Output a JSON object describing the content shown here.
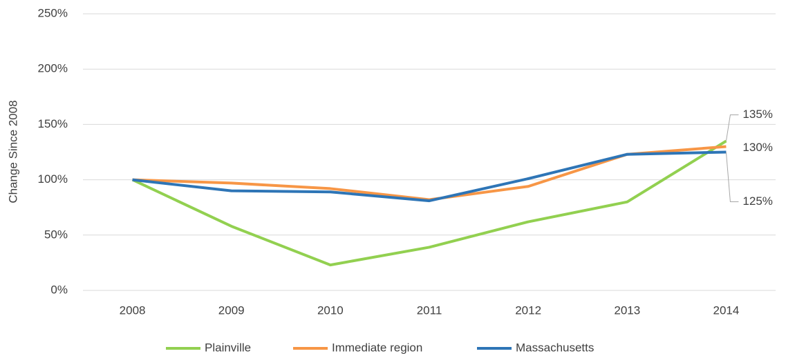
{
  "chart_data": {
    "type": "line",
    "y_label": "Change Since 2008",
    "categories": [
      "2008",
      "2009",
      "2010",
      "2011",
      "2012",
      "2013",
      "2014"
    ],
    "series": [
      {
        "name": "Plainville",
        "color": "#92d050",
        "values": [
          100,
          58,
          23,
          39,
          62,
          80,
          135
        ],
        "value_labels": [
          null,
          null,
          null,
          null,
          null,
          null,
          "135%"
        ]
      },
      {
        "name": "Immediate region",
        "color": "#f79646",
        "values": [
          100,
          97,
          92,
          82,
          94,
          123,
          130
        ],
        "value_labels": [
          null,
          null,
          null,
          null,
          null,
          null,
          "130%"
        ]
      },
      {
        "name": "Massachusetts",
        "color": "#2e75b6",
        "values": [
          100,
          90,
          89,
          81,
          101,
          123,
          125
        ],
        "value_labels": [
          null,
          null,
          null,
          null,
          null,
          null,
          "125%"
        ]
      }
    ],
    "ylim": [
      0,
      250
    ],
    "yticks": [
      {
        "value": 0,
        "label": "0%"
      },
      {
        "value": 50,
        "label": "50%"
      },
      {
        "value": 100,
        "label": "100%"
      },
      {
        "value": 150,
        "label": "150%"
      },
      {
        "value": 200,
        "label": "200%"
      },
      {
        "value": 250,
        "label": "250%"
      }
    ],
    "grid": true,
    "legend": "bottom"
  }
}
